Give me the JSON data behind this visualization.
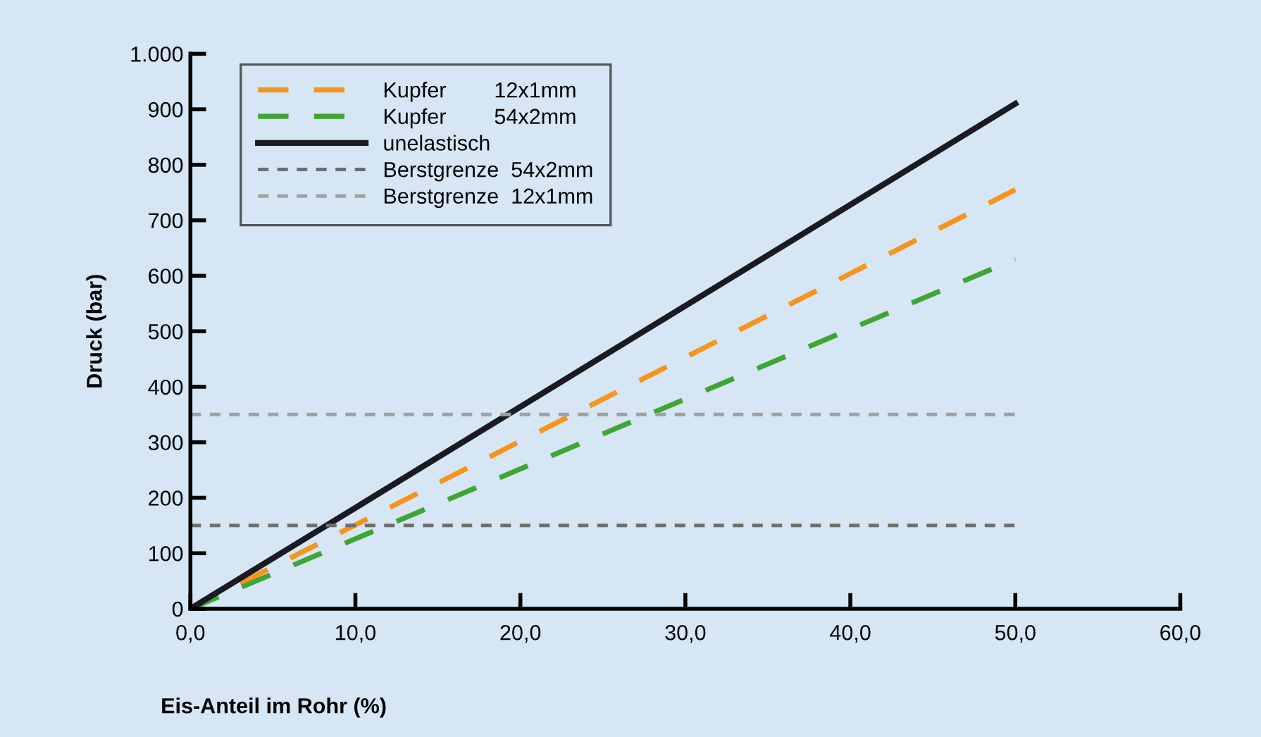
{
  "chart_data": {
    "type": "line",
    "xlabel": "Eis-Anteil im Rohr (%)",
    "ylabel": "Druck (bar)",
    "x": [
      0,
      50
    ],
    "xlim": [
      0,
      60
    ],
    "ylim": [
      0,
      1000
    ],
    "xticks": [
      {
        "value": 0,
        "label": "0,0"
      },
      {
        "value": 10,
        "label": "10,0"
      },
      {
        "value": 20,
        "label": "20,0"
      },
      {
        "value": 30,
        "label": "30,0"
      },
      {
        "value": 40,
        "label": "40,0"
      },
      {
        "value": 50,
        "label": "50,0"
      },
      {
        "value": 60,
        "label": "60,0"
      }
    ],
    "yticks": [
      0,
      100,
      200,
      300,
      400,
      500,
      600,
      700,
      800,
      900,
      {
        "value": 1000,
        "label": "1.000"
      }
    ],
    "grid": false,
    "legend": "top left",
    "marker": "none",
    "series": [
      {
        "name": "Kupfer        12x1mm",
        "color": "#f7941d",
        "values": [
          0,
          755
        ],
        "line_style": "dashed"
      },
      {
        "name": "Kupfer        54x2mm",
        "color": "#3fa535",
        "values": [
          0,
          630
        ],
        "line_style": "dashed"
      },
      {
        "name": "unelastisch",
        "color": "#1a1a22",
        "values": [
          0,
          910
        ],
        "line_style": "solid"
      },
      {
        "name": "Berstgrenze  54x2mm",
        "color": "#6e6e6e",
        "values": [
          150,
          150
        ],
        "line_style": "dotted"
      },
      {
        "name": "Berstgrenze  12x1mm",
        "color": "#a0a0a0",
        "values": [
          350,
          350
        ],
        "line_style": "dotted"
      }
    ]
  }
}
